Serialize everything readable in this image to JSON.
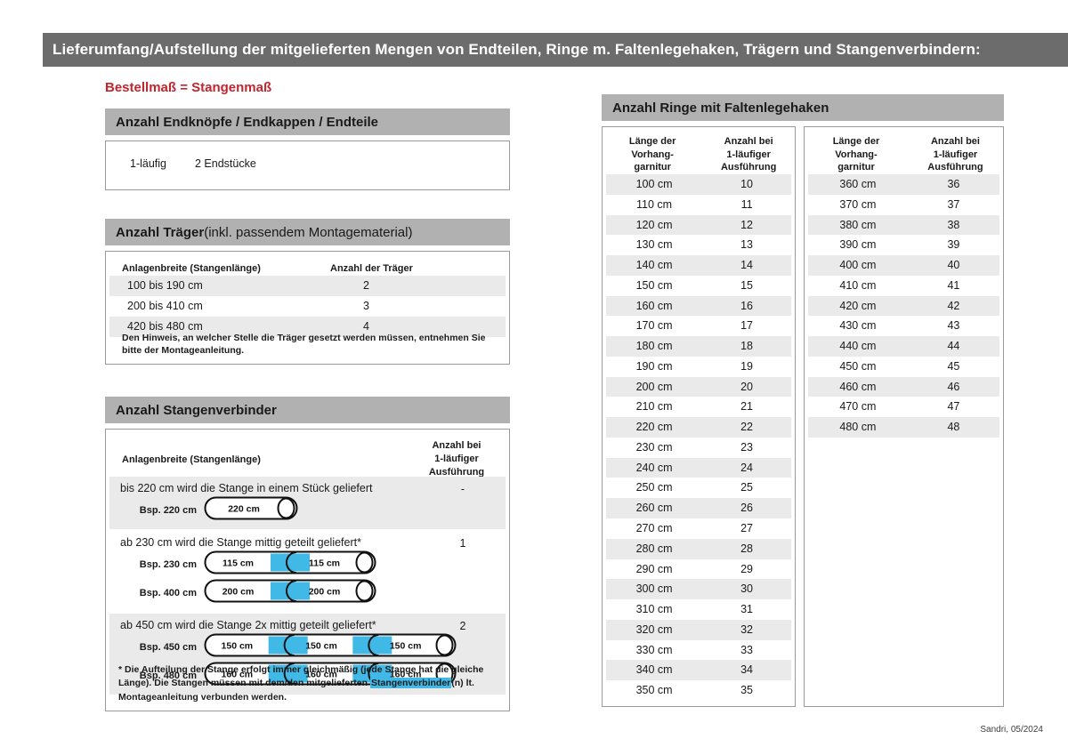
{
  "header": {
    "title": "Lieferumfang/Aufstellung der mitgelieferten Mengen von Endteilen, Ringe m. Faltenlegehaken, Trägern und Stangenverbindern:"
  },
  "red_note": "Bestellmaß = Stangenmaß",
  "endteile": {
    "title": "Anzahl Endknöpfe / Endkappen / Endteile",
    "row": {
      "type": "1-läufig",
      "value": "2 Endstücke"
    }
  },
  "traeger": {
    "title_bold": "Anzahl Träger",
    "title_normal": " (inkl. passendem Montagematerial)",
    "col1": "Anlagenbreite (Stangenlänge)",
    "col2": "Anzahl der Träger",
    "rows": [
      {
        "breite": "100 bis 190 cm",
        "anzahl": "2"
      },
      {
        "breite": "200 bis 410 cm",
        "anzahl": "3"
      },
      {
        "breite": "420 bis 480 cm",
        "anzahl": "4"
      }
    ],
    "note": "Den Hinweis, an welcher Stelle die Träger gesetzt werden müssen, entnehmen Sie bitte der Montageanleitung."
  },
  "verbinder": {
    "title": "Anzahl Stangenverbinder",
    "col1": "Anlagenbreite (Stangenlänge)",
    "col2_lines": [
      "Anzahl bei",
      "1-läufiger",
      "Ausführung"
    ],
    "rows": [
      {
        "text": "bis 220 cm wird die Stange in einem Stück geliefert",
        "value": "-",
        "shaded": true,
        "examples": [
          {
            "label": "Bsp. 220 cm",
            "segments": [
              "220 cm"
            ]
          }
        ]
      },
      {
        "text": "ab 230 cm wird die Stange mittig geteilt geliefert*",
        "value": "1",
        "shaded": false,
        "examples": [
          {
            "label": "Bsp. 230 cm",
            "segments": [
              "115 cm",
              "115 cm"
            ]
          },
          {
            "label": "Bsp. 400 cm",
            "segments": [
              "200 cm",
              "200 cm"
            ]
          }
        ]
      },
      {
        "text": "ab 450 cm wird die Stange 2x mittig geteilt geliefert*",
        "value": "2",
        "shaded": true,
        "examples": [
          {
            "label": "Bsp. 450 cm",
            "segments": [
              "150 cm",
              "150 cm",
              "150 cm"
            ]
          },
          {
            "label": "Bsp. 480 cm",
            "segments": [
              "160 cm",
              "160 cm",
              "160 cm"
            ]
          }
        ]
      }
    ],
    "footnote": {
      "pre": "* Die Aufteilung der Stange erfolgt immer gleichmäßig (jede Stange hat die gleiche Länge). Die Stangen müssen mit dem/den mitgelieferten ",
      "highlight": "Stangenverbinder",
      "post": "(n) lt. Montageanleitung verbunden werden."
    }
  },
  "ringe": {
    "title": "Anzahl Ringe mit Faltenlegehaken",
    "col1_lines": [
      "Länge der",
      "Vorhang-",
      "garnitur"
    ],
    "col2_lines": [
      "Anzahl bei",
      "1-läufiger",
      "Ausführung"
    ],
    "table_left": [
      {
        "len": "100 cm",
        "count": "10"
      },
      {
        "len": "110 cm",
        "count": "11"
      },
      {
        "len": "120 cm",
        "count": "12"
      },
      {
        "len": "130 cm",
        "count": "13"
      },
      {
        "len": "140 cm",
        "count": "14"
      },
      {
        "len": "150 cm",
        "count": "15"
      },
      {
        "len": "160 cm",
        "count": "16"
      },
      {
        "len": "170 cm",
        "count": "17"
      },
      {
        "len": "180 cm",
        "count": "18"
      },
      {
        "len": "190 cm",
        "count": "19"
      },
      {
        "len": "200 cm",
        "count": "20"
      },
      {
        "len": "210 cm",
        "count": "21"
      },
      {
        "len": "220 cm",
        "count": "22"
      },
      {
        "len": "230 cm",
        "count": "23"
      },
      {
        "len": "240 cm",
        "count": "24"
      },
      {
        "len": "250 cm",
        "count": "25"
      },
      {
        "len": "260 cm",
        "count": "26"
      },
      {
        "len": "270 cm",
        "count": "27"
      },
      {
        "len": "280 cm",
        "count": "28"
      },
      {
        "len": "290 cm",
        "count": "29"
      },
      {
        "len": "300 cm",
        "count": "30"
      },
      {
        "len": "310 cm",
        "count": "31"
      },
      {
        "len": "320 cm",
        "count": "32"
      },
      {
        "len": "330 cm",
        "count": "33"
      },
      {
        "len": "340 cm",
        "count": "34"
      },
      {
        "len": "350 cm",
        "count": "35"
      }
    ],
    "table_right": [
      {
        "len": "360 cm",
        "count": "36"
      },
      {
        "len": "370 cm",
        "count": "37"
      },
      {
        "len": "380 cm",
        "count": "38"
      },
      {
        "len": "390 cm",
        "count": "39"
      },
      {
        "len": "400 cm",
        "count": "40"
      },
      {
        "len": "410 cm",
        "count": "41"
      },
      {
        "len": "420 cm",
        "count": "42"
      },
      {
        "len": "430 cm",
        "count": "43"
      },
      {
        "len": "440 cm",
        "count": "44"
      },
      {
        "len": "450 cm",
        "count": "45"
      },
      {
        "len": "460 cm",
        "count": "46"
      },
      {
        "len": "470 cm",
        "count": "47"
      },
      {
        "len": "480 cm",
        "count": "48"
      }
    ]
  },
  "footer": {
    "credit": "Sandri, 05/2024"
  },
  "colors": {
    "accent_blue": "#41b9e6",
    "accent_red": "#c2252e",
    "bar_gray": "#6c6c6c",
    "header_gray": "#b1b1b1",
    "stripe_gray": "#eaeaea"
  }
}
